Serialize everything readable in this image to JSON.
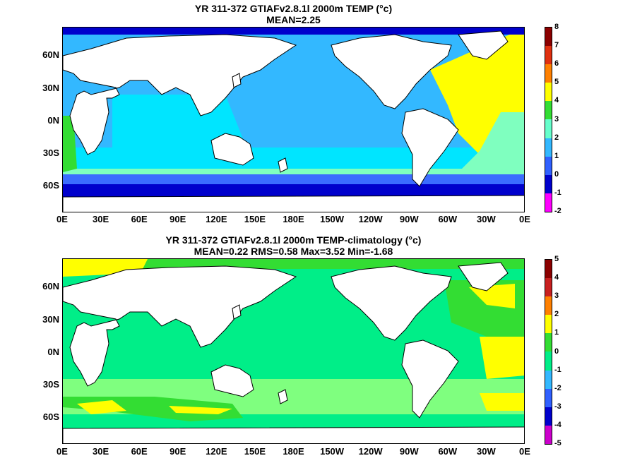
{
  "top": {
    "title_line1": "YR 311-372 GTIAFv2.8.1l 2000m TEMP (°c)",
    "title_line2": "MEAN=2.25",
    "colorbar_ticks": [
      "8",
      "7",
      "6",
      "5",
      "4",
      "3",
      "2",
      "1",
      "0",
      "-1",
      "-2"
    ],
    "colorbar_colors": [
      "#8b0000",
      "#e03010",
      "#ff8000",
      "#ffff00",
      "#33dd33",
      "#66ffcc",
      "#33b8ff",
      "#3060ff",
      "#0000cc",
      "#ff00ff",
      "#999999"
    ]
  },
  "bottom": {
    "title_line1": "YR 311-372 GTIAFv2.8.1l 2000m TEMP-climatology (°c)",
    "title_line2": "MEAN=0.22   RMS=0.58   Max=3.52   Min=-1.68",
    "colorbar_ticks": [
      "5",
      "4",
      "3",
      "2",
      "1",
      "0",
      "-1",
      "-2",
      "-3",
      "-4",
      "-5"
    ],
    "colorbar_colors": [
      "#8b0000",
      "#c82020",
      "#ff8000",
      "#ffff00",
      "#33dd33",
      "#00ee88",
      "#33b8ff",
      "#3060ff",
      "#0000cc",
      "#cc00cc",
      "#666666"
    ]
  },
  "lat_labels": [
    "60N",
    "30N",
    "0N",
    "30S",
    "60S"
  ],
  "lon_labels": [
    "0E",
    "30E",
    "60E",
    "90E",
    "120E",
    "150E",
    "180E",
    "150W",
    "120W",
    "90W",
    "60W",
    "30W",
    "0E"
  ]
}
